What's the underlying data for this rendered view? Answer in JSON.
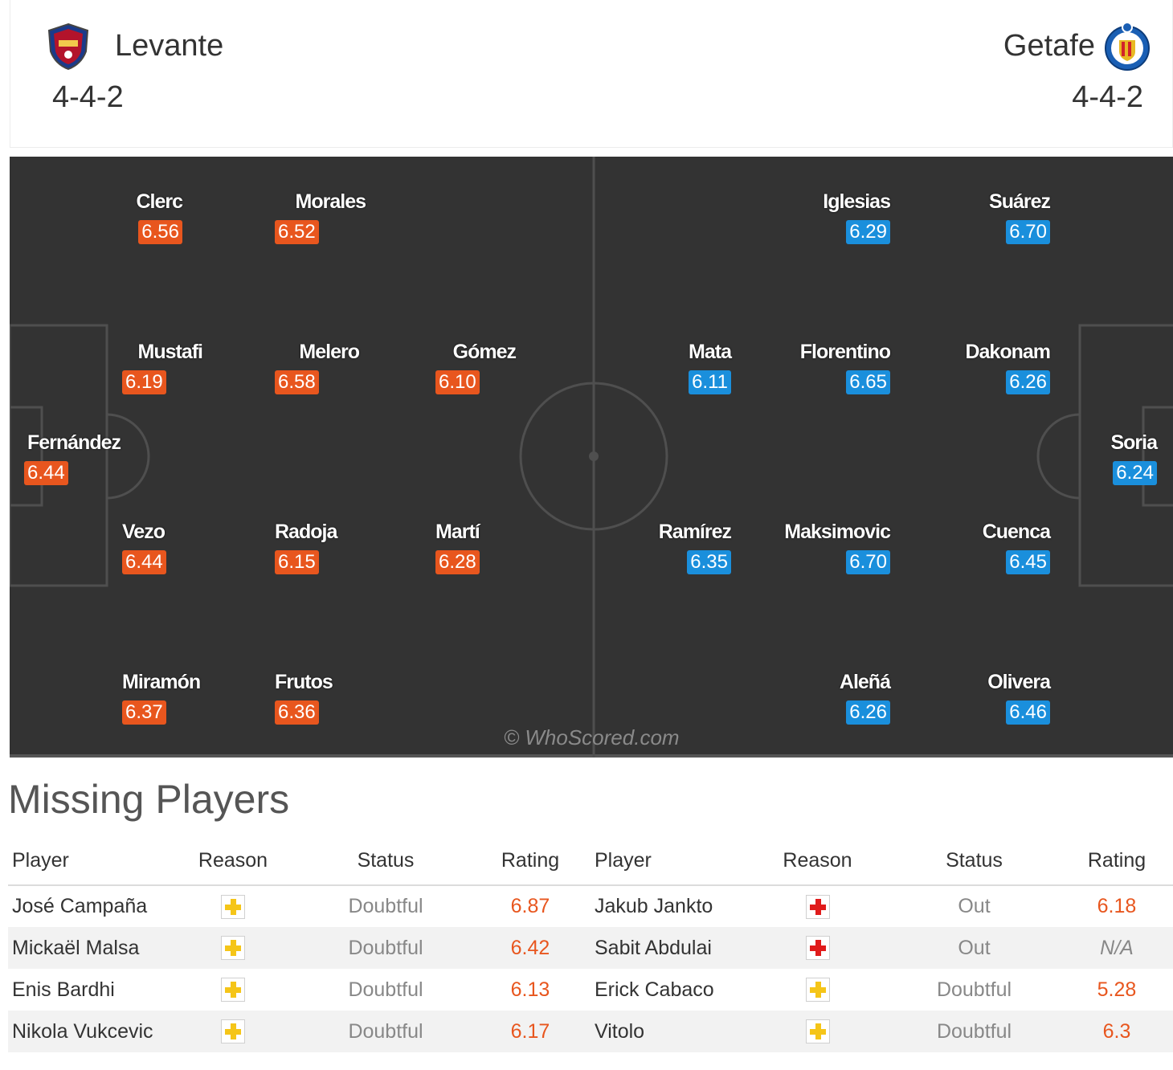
{
  "home": {
    "name": "Levante",
    "formation": "4-4-2",
    "accent": "#e8561e",
    "players": [
      {
        "name": "Clerc",
        "rating": "6.56"
      },
      {
        "name": "Morales",
        "rating": "6.52"
      },
      {
        "name": "Mustafi",
        "rating": "6.19"
      },
      {
        "name": "Melero",
        "rating": "6.58"
      },
      {
        "name": "Gómez",
        "rating": "6.10"
      },
      {
        "name": "Fernández",
        "rating": "6.44"
      },
      {
        "name": "Vezo",
        "rating": "6.44"
      },
      {
        "name": "Radoja",
        "rating": "6.15"
      },
      {
        "name": "Martí",
        "rating": "6.28"
      },
      {
        "name": "Miramón",
        "rating": "6.37"
      },
      {
        "name": "Frutos",
        "rating": "6.36"
      }
    ]
  },
  "away": {
    "name": "Getafe",
    "formation": "4-4-2",
    "accent": "#1a8fdc",
    "players": [
      {
        "name": "Iglesias",
        "rating": "6.29"
      },
      {
        "name": "Suárez",
        "rating": "6.70"
      },
      {
        "name": "Mata",
        "rating": "6.11"
      },
      {
        "name": "Florentino",
        "rating": "6.65"
      },
      {
        "name": "Dakonam",
        "rating": "6.26"
      },
      {
        "name": "Soria",
        "rating": "6.24"
      },
      {
        "name": "Ramírez",
        "rating": "6.35"
      },
      {
        "name": "Maksimovic",
        "rating": "6.70"
      },
      {
        "name": "Cuenca",
        "rating": "6.45"
      },
      {
        "name": "Aleñá",
        "rating": "6.26"
      },
      {
        "name": "Olivera",
        "rating": "6.46"
      }
    ]
  },
  "watermark": "© WhoScored.com",
  "missing": {
    "title": "Missing Players",
    "headers": [
      "Player",
      "Reason",
      "Status",
      "Rating",
      "Player",
      "Reason",
      "Status",
      "Rating"
    ],
    "rows": [
      {
        "home_player": "José Campaña",
        "home_reason": "yellow-cross-icon",
        "home_status": "Doubtful",
        "home_rating": "6.87",
        "away_player": "Jakub Jankto",
        "away_reason": "red-cross-icon",
        "away_status": "Out",
        "away_rating": "6.18"
      },
      {
        "home_player": "Mickaël Malsa",
        "home_reason": "yellow-cross-icon",
        "home_status": "Doubtful",
        "home_rating": "6.42",
        "away_player": "Sabit Abdulai",
        "away_reason": "red-cross-icon",
        "away_status": "Out",
        "away_rating": "N/A"
      },
      {
        "home_player": "Enis Bardhi",
        "home_reason": "yellow-cross-icon",
        "home_status": "Doubtful",
        "home_rating": "6.13",
        "away_player": "Erick Cabaco",
        "away_reason": "yellow-cross-icon",
        "away_status": "Doubtful",
        "away_rating": "5.28"
      },
      {
        "home_player": "Nikola Vukcevic",
        "home_reason": "yellow-cross-icon",
        "home_status": "Doubtful",
        "home_rating": "6.17",
        "away_player": "Vitolo",
        "away_reason": "yellow-cross-icon",
        "away_status": "Doubtful",
        "away_rating": "6.3"
      }
    ],
    "colors": {
      "doubtful": "#f5c518",
      "out": "#e01b1b"
    }
  }
}
